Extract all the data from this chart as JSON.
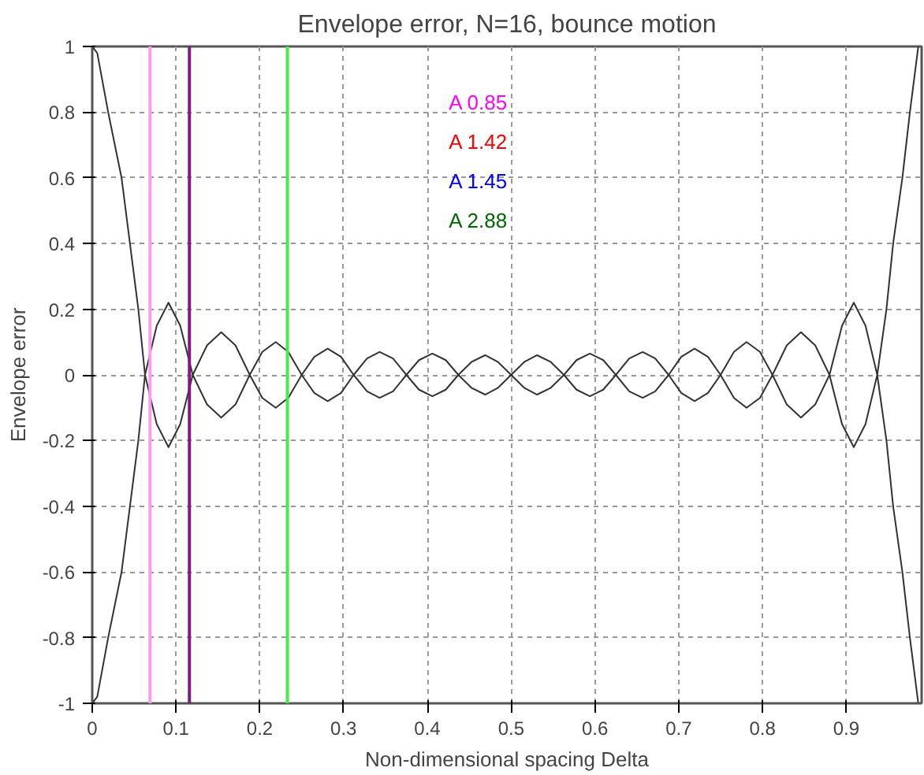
{
  "chart_data": {
    "type": "line",
    "title": "Envelope error, N=16, bounce motion",
    "xlabel": "Non-dimensional spacing Delta",
    "ylabel": "Envelope error",
    "x": [
      0,
      0.006,
      0.019,
      0.035,
      0.045,
      0.055,
      0.063,
      0.077,
      0.091,
      0.105,
      0.12,
      0.137,
      0.154,
      0.171,
      0.188,
      0.203,
      0.219,
      0.234,
      0.25,
      0.265,
      0.281,
      0.297,
      0.312,
      0.328,
      0.343,
      0.359,
      0.375,
      0.39,
      0.406,
      0.422,
      0.437,
      0.453,
      0.469,
      0.484,
      0.5,
      0.516,
      0.531,
      0.547,
      0.563,
      0.578,
      0.594,
      0.61,
      0.625,
      0.641,
      0.657,
      0.672,
      0.688,
      0.703,
      0.719,
      0.735,
      0.75,
      0.766,
      0.781,
      0.797,
      0.812,
      0.829,
      0.846,
      0.863,
      0.88,
      0.895,
      0.909,
      0.923,
      0.937,
      0.948,
      0.956,
      0.967,
      0.976,
      0.986
    ],
    "series": [
      {
        "color": "#333333",
        "values": [
          1,
          0.98,
          0.8,
          0.6,
          0.4,
          0.2,
          0,
          0.15,
          0.22,
          0.15,
          0,
          0.09,
          0.13,
          0.09,
          0,
          0.07,
          0.1,
          0.07,
          0,
          0.055,
          0.08,
          0.055,
          0,
          0.05,
          0.07,
          0.05,
          0,
          0.045,
          0.065,
          0.045,
          0,
          0.04,
          0.06,
          0.04,
          0,
          0.04,
          0.06,
          0.04,
          0,
          0.045,
          0.065,
          0.045,
          0,
          0.05,
          0.07,
          0.05,
          0,
          0.055,
          0.08,
          0.055,
          0,
          0.07,
          0.1,
          0.07,
          0,
          0.09,
          0.13,
          0.09,
          0,
          0.15,
          0.22,
          0.15,
          0,
          0.2,
          0.4,
          0.6,
          0.8,
          1
        ]
      },
      {
        "color": "#333333",
        "values": [
          -1,
          -0.98,
          -0.8,
          -0.6,
          -0.4,
          -0.2,
          0,
          -0.15,
          -0.22,
          -0.15,
          0,
          -0.09,
          -0.13,
          -0.09,
          0,
          -0.07,
          -0.1,
          -0.07,
          0,
          -0.055,
          -0.08,
          -0.055,
          0,
          -0.05,
          -0.07,
          -0.05,
          0,
          -0.045,
          -0.065,
          -0.045,
          0,
          -0.04,
          -0.06,
          -0.04,
          0,
          -0.04,
          -0.06,
          -0.04,
          0,
          -0.045,
          -0.065,
          -0.045,
          0,
          -0.05,
          -0.07,
          -0.05,
          0,
          -0.055,
          -0.08,
          -0.055,
          0,
          -0.07,
          -0.1,
          -0.07,
          0,
          -0.09,
          -0.13,
          -0.09,
          0,
          -0.15,
          -0.22,
          -0.15,
          0,
          -0.2,
          -0.4,
          -0.6,
          -0.8,
          -1
        ]
      }
    ],
    "ref_lines": [
      {
        "axis": "x",
        "value": 0.069,
        "color": "#ff99ee"
      },
      {
        "axis": "x",
        "value": 0.116,
        "color": "#7a1f7a"
      },
      {
        "axis": "x",
        "value": 0.233,
        "color": "#44ee44"
      }
    ],
    "annotations": [
      "A 0.85",
      "A 1.42",
      "A 1.45",
      "A 2.88"
    ],
    "xlim": [
      0,
      0.99
    ],
    "ylim": [
      -1,
      1
    ],
    "xticks": [
      0,
      0.1,
      0.2,
      0.3,
      0.4,
      0.5,
      0.6,
      0.7,
      0.8,
      0.9
    ],
    "yticks": [
      -1,
      -0.8,
      -0.6,
      -0.4,
      -0.2,
      0,
      0.2,
      0.4,
      0.6,
      0.8,
      1
    ],
    "grid": true,
    "line_style": "solid"
  }
}
